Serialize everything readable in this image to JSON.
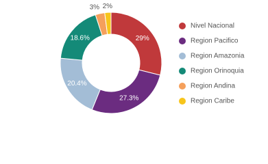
{
  "chart_data": {
    "type": "donut",
    "categories": [
      "Nivel Nacional",
      "Region Pacifico",
      "Region Amazonia",
      "Region Orinoquia",
      "Region Andina",
      "Region Caribe"
    ],
    "values": [
      29,
      27.3,
      20.4,
      18.6,
      3,
      2
    ],
    "value_labels": [
      "29%",
      "27.3%",
      "20.4%",
      "18.6%",
      "3%",
      "2%"
    ],
    "colors": [
      "#c0393b",
      "#6b2c80",
      "#a3bdd6",
      "#148a78",
      "#f5a05c",
      "#f7c51c"
    ],
    "legend": "right"
  }
}
